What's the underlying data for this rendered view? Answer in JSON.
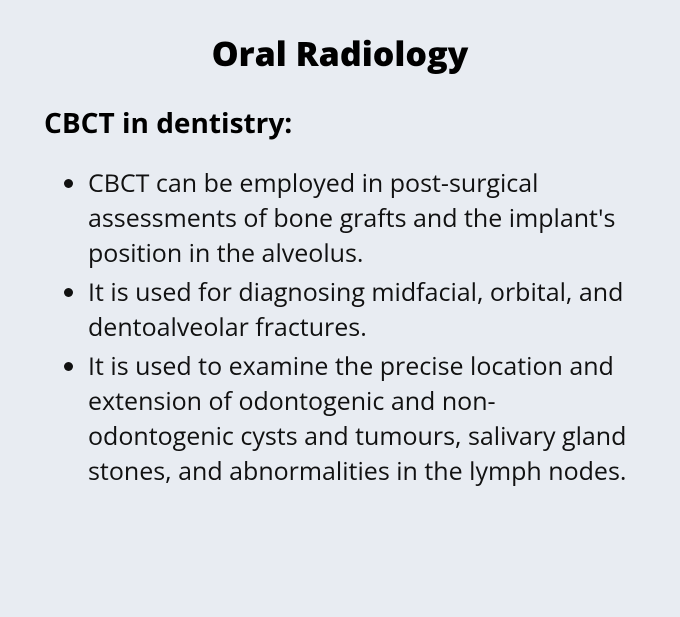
{
  "document": {
    "title": "Oral Radiology",
    "subtitle": "CBCT in dentistry:",
    "bullets": [
      "CBCT can be employed in post-surgical assessments of bone grafts and the implant's position in the alveolus.",
      "It is used for diagnosing midfacial, orbital, and dentoalveolar fractures.",
      "It is used to examine the precise location and extension of odontogenic and non-odontogenic cysts and tumours, salivary gland stones, and abnormalities in the lymph nodes."
    ],
    "style": {
      "background_color": "#e8ecf2",
      "text_color": "#000000",
      "title_fontsize": 34,
      "title_weight": 800,
      "subtitle_fontsize": 28,
      "subtitle_weight": 700,
      "body_fontsize": 25,
      "body_weight": 400,
      "line_height": 1.4,
      "font_family": "Open Sans, Segoe UI, Arial, sans-serif"
    }
  }
}
